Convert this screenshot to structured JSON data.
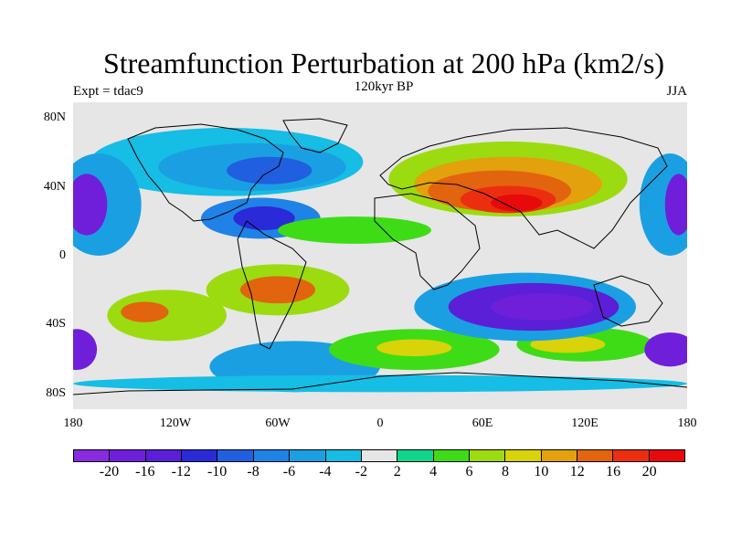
{
  "header": {
    "title": "Streamfunction Perturbation at 200 hPa (km2/s)",
    "subtitle": "120kyr BP",
    "left_label": "Expt = tdac9",
    "right_label": "JJA"
  },
  "axes": {
    "y_ticks": [
      {
        "value": 80,
        "label": "80N"
      },
      {
        "value": 40,
        "label": "40N"
      },
      {
        "value": 0,
        "label": "0"
      },
      {
        "value": -40,
        "label": "40S"
      },
      {
        "value": -80,
        "label": "80S"
      }
    ],
    "x_ticks": [
      {
        "value": -180,
        "label": "180"
      },
      {
        "value": -120,
        "label": "120W"
      },
      {
        "value": -60,
        "label": "60W"
      },
      {
        "value": 0,
        "label": "0"
      },
      {
        "value": 60,
        "label": "60E"
      },
      {
        "value": 120,
        "label": "120E"
      },
      {
        "value": 180,
        "label": "180"
      }
    ]
  },
  "colorbar": {
    "labels": [
      "-20",
      "-16",
      "-12",
      "-10",
      "-8",
      "-6",
      "-4",
      "-2",
      "2",
      "4",
      "6",
      "8",
      "10",
      "12",
      "16",
      "20"
    ],
    "colors": [
      "#8a2be2",
      "#6f1fd9",
      "#5a1fd6",
      "#2a2ad8",
      "#1f5fe0",
      "#1f82e6",
      "#1aa0e2",
      "#16bde4",
      "#e6e6e6",
      "#12d58c",
      "#3edc16",
      "#9cdb0f",
      "#d9d30a",
      "#e2a10d",
      "#e2640f",
      "#ec2e10",
      "#e60a0a"
    ]
  },
  "map": {
    "background": "#e6e6e6",
    "features": [
      {
        "id": "sib-high-outer",
        "lon": 75,
        "lat": 45,
        "rx": 70,
        "ry": 22,
        "color": "#9cdb0f"
      },
      {
        "id": "sib-high-1",
        "lon": 75,
        "lat": 42,
        "rx": 55,
        "ry": 16,
        "color": "#e2a10d"
      },
      {
        "id": "sib-high-2",
        "lon": 70,
        "lat": 38,
        "rx": 42,
        "ry": 12,
        "color": "#e2640f"
      },
      {
        "id": "sib-high-3",
        "lon": 75,
        "lat": 33,
        "rx": 28,
        "ry": 8,
        "color": "#ec2e10"
      },
      {
        "id": "sib-high-core",
        "lon": 80,
        "lat": 31,
        "rx": 15,
        "ry": 5,
        "color": "#e60a0a"
      },
      {
        "id": "namer-low-1",
        "lon": -90,
        "lat": 55,
        "rx": 80,
        "ry": 20,
        "color": "#16bde4"
      },
      {
        "id": "namer-low-2",
        "lon": -75,
        "lat": 52,
        "rx": 55,
        "ry": 14,
        "color": "#1aa0e2"
      },
      {
        "id": "namer-low-3",
        "lon": -65,
        "lat": 50,
        "rx": 25,
        "ry": 8,
        "color": "#1f5fe0"
      },
      {
        "id": "carib-low-1",
        "lon": -70,
        "lat": 22,
        "rx": 35,
        "ry": 12,
        "color": "#1f82e6"
      },
      {
        "id": "carib-low-2",
        "lon": -68,
        "lat": 22,
        "rx": 18,
        "ry": 7,
        "color": "#2a2ad8"
      },
      {
        "id": "pac-low-w1",
        "lon": -165,
        "lat": 30,
        "rx": 25,
        "ry": 30,
        "color": "#1aa0e2"
      },
      {
        "id": "pac-low-w2",
        "lon": -172,
        "lat": 30,
        "rx": 12,
        "ry": 18,
        "color": "#6f1fd9"
      },
      {
        "id": "pac-low-e1",
        "lon": 170,
        "lat": 30,
        "rx": 18,
        "ry": 30,
        "color": "#1aa0e2"
      },
      {
        "id": "pac-low-e2",
        "lon": 175,
        "lat": 30,
        "rx": 8,
        "ry": 18,
        "color": "#6f1fd9"
      },
      {
        "id": "atl-green",
        "lon": -15,
        "lat": 15,
        "rx": 45,
        "ry": 8,
        "color": "#3edc16"
      },
      {
        "id": "spac-high-1",
        "lon": -125,
        "lat": -35,
        "rx": 35,
        "ry": 15,
        "color": "#9cdb0f"
      },
      {
        "id": "spac-high-2",
        "lon": -138,
        "lat": -33,
        "rx": 14,
        "ry": 6,
        "color": "#e2640f"
      },
      {
        "id": "sam-high-1",
        "lon": -60,
        "lat": -20,
        "rx": 42,
        "ry": 15,
        "color": "#9cdb0f"
      },
      {
        "id": "sam-high-2",
        "lon": -60,
        "lat": -20,
        "rx": 22,
        "ry": 8,
        "color": "#e2640f"
      },
      {
        "id": "satl-blue",
        "lon": -50,
        "lat": -65,
        "rx": 50,
        "ry": 15,
        "color": "#1aa0e2"
      },
      {
        "id": "satl-green",
        "lon": 20,
        "lat": -55,
        "rx": 50,
        "ry": 12,
        "color": "#3edc16"
      },
      {
        "id": "satl-yellow",
        "lon": 20,
        "lat": -54,
        "rx": 22,
        "ry": 5,
        "color": "#d9d30a"
      },
      {
        "id": "sind-green",
        "lon": 120,
        "lat": -52,
        "rx": 40,
        "ry": 10,
        "color": "#3edc16"
      },
      {
        "id": "sind-yellow",
        "lon": 110,
        "lat": -52,
        "rx": 22,
        "ry": 5,
        "color": "#d9d30a"
      },
      {
        "id": "ind-low-1",
        "lon": 85,
        "lat": -30,
        "rx": 65,
        "ry": 20,
        "color": "#1aa0e2"
      },
      {
        "id": "ind-low-2",
        "lon": 90,
        "lat": -30,
        "rx": 50,
        "ry": 14,
        "color": "#5a1fd6"
      },
      {
        "id": "ind-low-3",
        "lon": 95,
        "lat": -30,
        "rx": 30,
        "ry": 8,
        "color": "#6f1fd9"
      },
      {
        "id": "spac-low-w",
        "lon": -178,
        "lat": -55,
        "rx": 12,
        "ry": 12,
        "color": "#6f1fd9"
      },
      {
        "id": "spac-low-e",
        "lon": 170,
        "lat": -55,
        "rx": 15,
        "ry": 10,
        "color": "#6f1fd9"
      },
      {
        "id": "ant-band",
        "lon": 0,
        "lat": -75,
        "rx": 180,
        "ry": 5,
        "color": "#16bde4"
      }
    ]
  }
}
